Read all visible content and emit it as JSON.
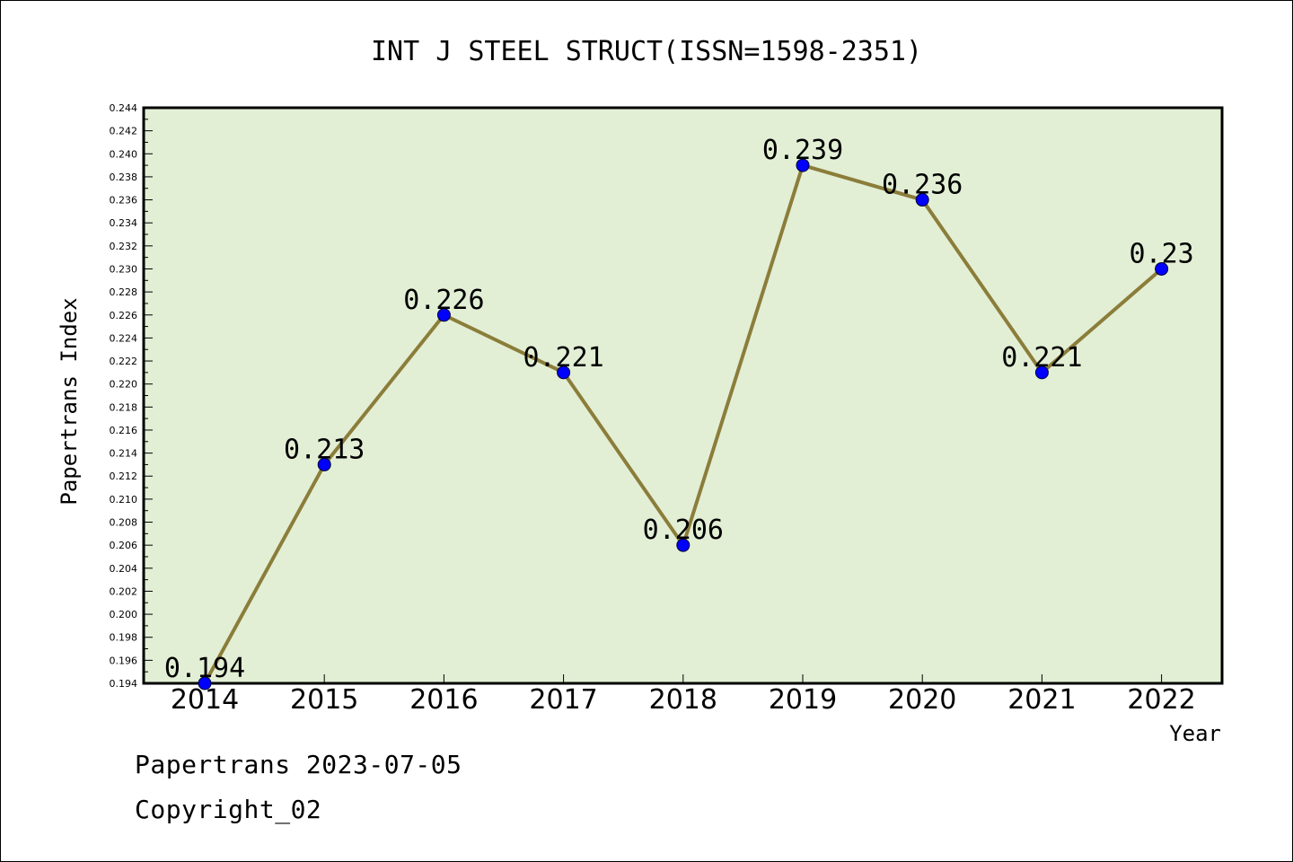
{
  "chart_data": {
    "type": "line",
    "title": "INT J STEEL STRUCT(ISSN=1598-2351)",
    "xlabel": "Year",
    "ylabel": "Papertrans Index",
    "categories": [
      "2014",
      "2015",
      "2016",
      "2017",
      "2018",
      "2019",
      "2020",
      "2021",
      "2022"
    ],
    "series": [
      {
        "values": [
          0.194,
          0.213,
          0.226,
          0.221,
          0.206,
          0.239,
          0.236,
          0.221,
          0.23
        ]
      }
    ],
    "data_labels": [
      "0.194",
      "0.213",
      "0.226",
      "0.221",
      "0.206",
      "0.239",
      "0.236",
      "0.221",
      "0.23"
    ],
    "ylim": [
      0.194,
      0.244
    ],
    "ytick_step": 0.002,
    "grid": false,
    "colors": {
      "plot_background": "#e2efd5",
      "line": "#8b7d3a",
      "marker": "#0000ff"
    }
  },
  "footer": {
    "source": "Papertrans 2023-07-05",
    "copyright": "Copyright_02"
  }
}
